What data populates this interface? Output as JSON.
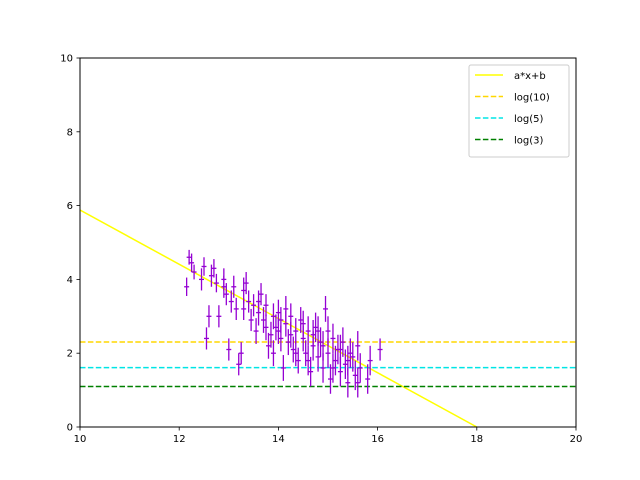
{
  "chart_data": {
    "type": "scatter",
    "title": "",
    "xlabel": "",
    "ylabel": "",
    "xlim": [
      10,
      20
    ],
    "ylim": [
      0,
      10
    ],
    "xticks": [
      "10",
      "12",
      "14",
      "16",
      "18",
      "20"
    ],
    "yticks": [
      "0",
      "2",
      "4",
      "6",
      "8",
      "10"
    ],
    "grid": false,
    "legend_position": "top-right",
    "colors": {
      "fit": "#ffff00",
      "log10": "#ffd700",
      "log5": "#00e5e5",
      "log3": "#008000",
      "points": "#9400d3"
    },
    "lines": [
      {
        "name": "a*x+b",
        "style": "solid",
        "color_key": "fit",
        "x": [
          10,
          18
        ],
        "y": [
          5.88,
          0.0
        ]
      },
      {
        "name": "log(10)",
        "style": "dashed",
        "color_key": "log10",
        "y_const": 2.303
      },
      {
        "name": "log(5)",
        "style": "dashed",
        "color_key": "log5",
        "y_const": 1.609
      },
      {
        "name": "log(3)",
        "style": "dashed",
        "color_key": "log3",
        "y_const": 1.099
      }
    ],
    "points": {
      "xerr": 0.05,
      "data": [
        [
          12.15,
          3.8,
          0.25
        ],
        [
          12.2,
          4.6,
          0.2
        ],
        [
          12.25,
          4.45,
          0.25
        ],
        [
          12.3,
          4.2,
          0.2
        ],
        [
          12.45,
          4.0,
          0.3
        ],
        [
          12.5,
          4.35,
          0.25
        ],
        [
          12.55,
          2.4,
          0.3
        ],
        [
          12.6,
          3.0,
          0.3
        ],
        [
          12.65,
          4.1,
          0.3
        ],
        [
          12.7,
          4.3,
          0.25
        ],
        [
          12.75,
          3.9,
          0.25
        ],
        [
          12.8,
          3.0,
          0.3
        ],
        [
          12.9,
          4.0,
          0.3
        ],
        [
          12.95,
          3.6,
          0.3
        ],
        [
          13.0,
          2.1,
          0.3
        ],
        [
          13.05,
          3.4,
          0.3
        ],
        [
          13.1,
          3.8,
          0.3
        ],
        [
          13.15,
          3.2,
          0.3
        ],
        [
          13.2,
          1.7,
          0.3
        ],
        [
          13.25,
          2.0,
          0.3
        ],
        [
          13.3,
          3.7,
          0.35
        ],
        [
          13.35,
          3.9,
          0.3
        ],
        [
          13.4,
          3.4,
          0.3
        ],
        [
          13.45,
          2.9,
          0.3
        ],
        [
          13.5,
          3.3,
          0.3
        ],
        [
          13.55,
          2.6,
          0.35
        ],
        [
          13.6,
          3.1,
          0.35
        ],
        [
          13.65,
          3.6,
          0.3
        ],
        [
          13.7,
          2.9,
          0.35
        ],
        [
          13.75,
          3.3,
          0.3
        ],
        [
          13.8,
          2.2,
          0.35
        ],
        [
          13.85,
          2.5,
          0.35
        ],
        [
          13.9,
          2.0,
          0.35
        ],
        [
          13.95,
          2.7,
          0.35
        ],
        [
          14.0,
          3.1,
          0.35
        ],
        [
          14.05,
          2.4,
          0.35
        ],
        [
          14.1,
          1.6,
          0.35
        ],
        [
          14.15,
          2.8,
          0.35
        ],
        [
          14.2,
          2.3,
          0.35
        ],
        [
          14.25,
          3.0,
          0.35
        ],
        [
          14.3,
          2.1,
          0.35
        ],
        [
          14.35,
          2.6,
          0.35
        ],
        [
          14.4,
          1.8,
          0.35
        ],
        [
          14.45,
          2.9,
          0.35
        ],
        [
          14.5,
          2.4,
          0.35
        ],
        [
          14.55,
          2.0,
          0.35
        ],
        [
          14.6,
          2.6,
          0.4
        ],
        [
          14.65,
          1.5,
          0.4
        ],
        [
          14.7,
          2.2,
          0.4
        ],
        [
          14.75,
          2.7,
          0.4
        ],
        [
          14.8,
          1.9,
          0.4
        ],
        [
          14.85,
          2.3,
          0.4
        ],
        [
          14.9,
          1.6,
          0.4
        ],
        [
          14.95,
          3.2,
          0.35
        ],
        [
          15.0,
          2.0,
          0.4
        ],
        [
          15.05,
          1.3,
          0.4
        ],
        [
          15.1,
          2.4,
          0.4
        ],
        [
          15.15,
          1.8,
          0.4
        ],
        [
          15.2,
          2.1,
          0.4
        ],
        [
          15.25,
          1.5,
          0.4
        ],
        [
          15.3,
          2.3,
          0.4
        ],
        [
          15.35,
          1.7,
          0.4
        ],
        [
          15.4,
          1.2,
          0.4
        ],
        [
          15.45,
          2.0,
          0.4
        ],
        [
          15.5,
          1.9,
          0.4
        ],
        [
          15.55,
          1.4,
          0.4
        ],
        [
          15.6,
          2.2,
          0.4
        ],
        [
          15.65,
          1.6,
          0.4
        ],
        [
          15.8,
          1.3,
          0.4
        ],
        [
          15.85,
          1.8,
          0.4
        ],
        [
          16.05,
          2.1,
          0.3
        ],
        [
          13.6,
          3.4,
          0.3
        ],
        [
          13.9,
          3.0,
          0.35
        ],
        [
          14.05,
          2.9,
          0.35
        ],
        [
          14.25,
          2.5,
          0.35
        ],
        [
          14.5,
          2.8,
          0.35
        ],
        [
          14.7,
          2.5,
          0.4
        ],
        [
          14.9,
          2.2,
          0.4
        ],
        [
          15.1,
          1.6,
          0.4
        ],
        [
          15.4,
          1.8,
          0.4
        ],
        [
          15.6,
          1.2,
          0.4
        ],
        [
          13.3,
          3.2,
          0.3
        ],
        [
          12.9,
          3.8,
          0.3
        ],
        [
          14.15,
          3.2,
          0.35
        ],
        [
          14.35,
          2.0,
          0.35
        ],
        [
          14.8,
          2.6,
          0.4
        ],
        [
          15.0,
          2.6,
          0.4
        ],
        [
          15.25,
          2.1,
          0.4
        ],
        [
          14.6,
          1.8,
          0.4
        ],
        [
          14.0,
          2.6,
          0.35
        ],
        [
          13.75,
          2.7,
          0.35
        ]
      ]
    }
  }
}
